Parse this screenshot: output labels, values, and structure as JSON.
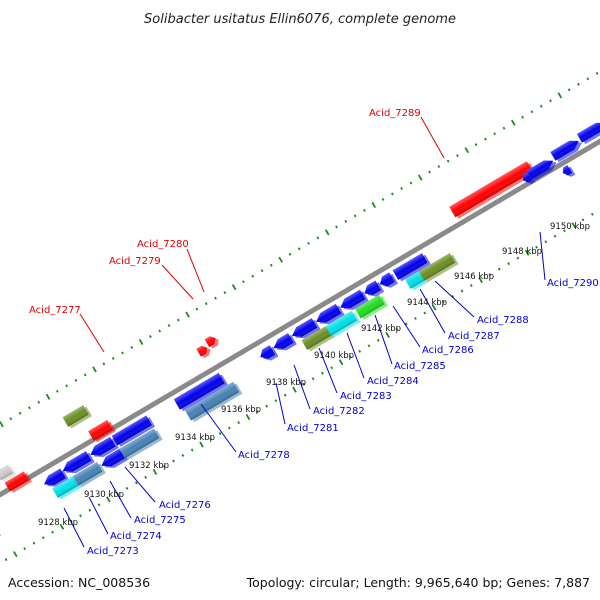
{
  "title": "Solibacter usitatus Ellin6076, complete genome",
  "footer": {
    "accession": "Accession: NC_008536",
    "summary": "Topology: circular; Length: 9,965,640 bp; Genes: 7,887"
  },
  "colors": {
    "backbone": "#8a8a8a",
    "tick_dots": "#1c8a1c",
    "forward_label": "#e00000",
    "reverse_label": "#0000cc",
    "gene_red": "#ff0000",
    "gene_blue": "#0000ee",
    "gene_cyan": "#00e0e8",
    "gene_olive": "#6b8e23",
    "gene_green": "#22dd22",
    "gene_steel": "#4682b4",
    "gene_grey": "#cccccc"
  },
  "scale_ticks": [
    "9128 kbp",
    "9130 kbp",
    "9132 kbp",
    "9134 kbp",
    "9136 kbp",
    "9138 kbp",
    "9140 kbp",
    "9142 kbp",
    "9144 kbp",
    "9146 kbp",
    "9148 kbp",
    "9150 kbp"
  ],
  "forward_labels": [
    "Acid_7277",
    "Acid_7279",
    "Acid_7280",
    "Acid_7289"
  ],
  "reverse_labels": [
    "Acid_7273",
    "Acid_7274",
    "Acid_7275",
    "Acid_7276",
    "Acid_7278",
    "Acid_7281",
    "Acid_7282",
    "Acid_7283",
    "Acid_7284",
    "Acid_7285",
    "Acid_7286",
    "Acid_7287",
    "Acid_7288",
    "Acid_7290"
  ]
}
